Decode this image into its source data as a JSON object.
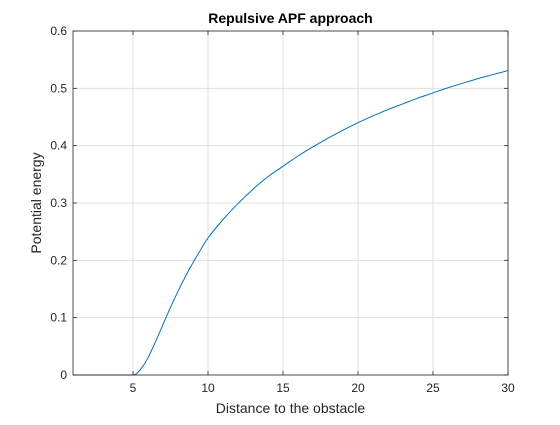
{
  "chart_data": {
    "type": "line",
    "title": "Repulsive APF approach",
    "xlabel": "Distance to the obstacle",
    "ylabel": "Potential energy",
    "xlim": [
      1,
      30
    ],
    "ylim": [
      0,
      0.6
    ],
    "xticks": [
      5,
      10,
      15,
      20,
      25,
      30
    ],
    "xtick_labels": [
      "5",
      "10",
      "15",
      "20",
      "25",
      "30"
    ],
    "yticks": [
      0,
      0.1,
      0.2,
      0.3,
      0.4,
      0.5,
      0.6
    ],
    "ytick_labels": [
      "0",
      "0.1",
      "0.2",
      "0.3",
      "0.4",
      "0.5",
      "0.6"
    ],
    "grid": true,
    "series": [
      {
        "color": "#0072BD",
        "x": [
          1,
          2,
          3,
          4,
          5,
          5.3,
          5.6,
          6,
          6.5,
          7,
          7.5,
          8,
          8.5,
          9,
          9.5,
          10,
          11,
          12,
          13,
          14,
          15,
          16,
          17,
          18,
          19,
          20,
          21,
          22,
          23,
          24,
          25,
          26,
          27,
          28,
          29,
          30
        ],
        "y": [
          0,
          0,
          0,
          0,
          0,
          0.004,
          0.013,
          0.03,
          0.058,
          0.088,
          0.118,
          0.146,
          0.172,
          0.196,
          0.218,
          0.239,
          0.271,
          0.299,
          0.324,
          0.346,
          0.364,
          0.382,
          0.398,
          0.413,
          0.427,
          0.44,
          0.452,
          0.463,
          0.473,
          0.483,
          0.492,
          0.501,
          0.509,
          0.517,
          0.524,
          0.531
        ]
      }
    ]
  }
}
